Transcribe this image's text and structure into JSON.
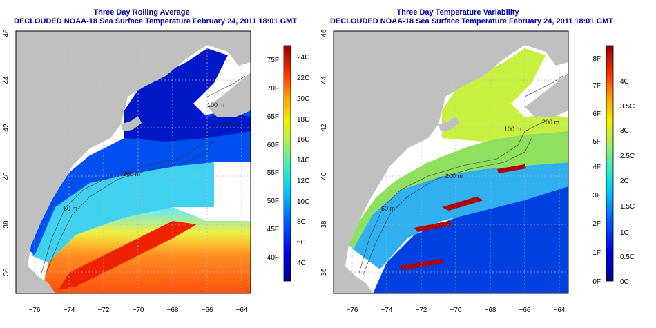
{
  "left_panel": {
    "title_line1": "Three Day Rolling Average",
    "title_line2": "DECLOUDED NOAA-18 Sea Surface Temperature February 24, 2011 18:01 GMT",
    "contour_labels": [
      "100 m",
      "200 m",
      "200 m",
      "60 m"
    ],
    "colorbar": {
      "fahrenheit_labels": [
        "40F",
        "45F",
        "50F",
        "55F",
        "60F",
        "65F",
        "70F",
        "75F"
      ],
      "celsius_labels": [
        "4C",
        "6C",
        "8C",
        "10C",
        "12C",
        "14C",
        "16C",
        "18C",
        "20C",
        "22C",
        "24C"
      ]
    }
  },
  "right_panel": {
    "title_line1": "Three Day Temperature Variability",
    "title_line2": "DECLOUDED NOAA-18 Sea Surface Temperature February 24, 2011 18:01 GMT",
    "contour_labels": [
      "100 m",
      "200 m",
      "200 m",
      "60 m"
    ],
    "colorbar": {
      "fahrenheit_labels": [
        "0F",
        "1F",
        "2F",
        "3F",
        "4F",
        "5F",
        "6F",
        "7F",
        "8F"
      ],
      "celsius_labels": [
        "0C",
        "0.5C",
        "1C",
        "1.5C",
        "2C",
        "2.5C",
        "3C",
        "3.5C",
        "4C"
      ]
    }
  },
  "axes": {
    "lon_labels": [
      "−76",
      "−74",
      "−72",
      "−70",
      "−68",
      "−66",
      "−64"
    ],
    "lat_labels": [
      "36",
      "38",
      "40",
      "42",
      "44",
      "46"
    ]
  },
  "colors": {
    "land": "#c0c0c0",
    "title": "#0000aa"
  }
}
